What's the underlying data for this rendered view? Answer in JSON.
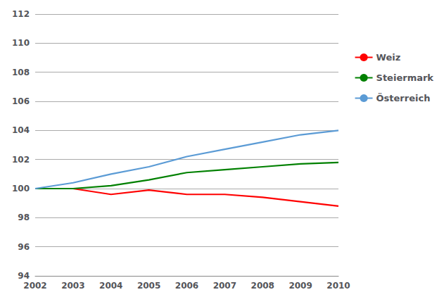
{
  "chart_data": {
    "type": "line",
    "x": [
      2002,
      2003,
      2004,
      2005,
      2006,
      2007,
      2008,
      2009,
      2010
    ],
    "series": [
      {
        "name": "Weiz",
        "color": "#FF0000",
        "values": [
          100.0,
          100.0,
          99.6,
          99.9,
          99.6,
          99.6,
          99.4,
          99.1,
          98.8
        ]
      },
      {
        "name": "Steiermark",
        "color": "#008000",
        "values": [
          100.0,
          100.0,
          100.2,
          100.6,
          101.1,
          101.3,
          101.5,
          101.7,
          101.8
        ]
      },
      {
        "name": "Österreich",
        "color": "#5B9BD5",
        "values": [
          100.0,
          100.4,
          101.0,
          101.5,
          102.2,
          102.7,
          103.2,
          103.7,
          104.0
        ]
      }
    ],
    "xlim": [
      2002,
      2010
    ],
    "xticks": [
      2002,
      2003,
      2004,
      2005,
      2006,
      2007,
      2008,
      2009,
      2010
    ],
    "ylim": [
      94,
      112
    ],
    "yticks": [
      94,
      96,
      98,
      100,
      102,
      104,
      106,
      108,
      110,
      112
    ],
    "grid": true,
    "legend": "right"
  }
}
